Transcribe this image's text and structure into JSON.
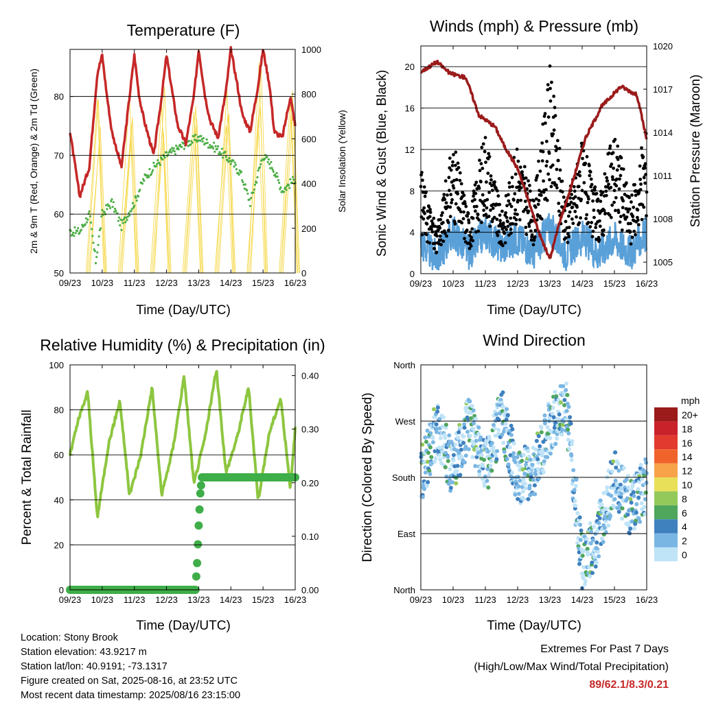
{
  "x_ticks": [
    "09/23",
    "10/23",
    "11/23",
    "12/23",
    "13/23",
    "14/23",
    "15/23",
    "16/23"
  ],
  "panels": {
    "temperature": {
      "title": "Temperature (F)",
      "xlabel": "Time (Day/UTC)",
      "ylabel_left": "2m & 9m T (Red, Orange) & 2m Td (Green)",
      "ylabel_right": "Solar Insolation (Yellow)"
    },
    "winds": {
      "title": "Winds (mph) & Pressure (mb)",
      "xlabel": "Time (Day/UTC)",
      "ylabel_left": "Sonic Wind & Gust (Blue, Black)",
      "ylabel_right": "Station Pressure (Maroon)"
    },
    "humidity": {
      "title": "Relative Humidity (%) & Precipitation (in)",
      "xlabel": "Time (Day/UTC)",
      "ylabel_left": "Percent & Total Rainfall"
    },
    "direction": {
      "title": "Wind Direction",
      "xlabel": "Time (Day/UTC)",
      "ylabel_left": "Direction (Colored By Speed)",
      "legend_title": "mph",
      "legend_labels": [
        "20+",
        "18",
        "16",
        "14",
        "12",
        "10",
        "8",
        "6",
        "4",
        "2",
        "0"
      ],
      "legend_colors": [
        "#9b1b1b",
        "#c9222a",
        "#e23a2e",
        "#f0642c",
        "#f8a24a",
        "#e9e05a",
        "#92c95a",
        "#4fa65d",
        "#3f80bf",
        "#7ab6e3",
        "#bfe3f7"
      ]
    }
  },
  "info": {
    "location": "Location: Stony Brook",
    "elevation": "Station elevation: 43.9217 m",
    "latlon": "Station lat/lon: 40.9191; -73.1317",
    "created": "Figure created on Sat, 2025-08-16, at 23:52 UTC",
    "recent": "Most recent data timestamp: 2025/08/16 23:15:00"
  },
  "extremes": {
    "line1": "Extremes For Past 7 Days",
    "line2": "(High/Low/Max Wind/Total Precipitation)",
    "values": "89/62.1/8.3/0.21"
  },
  "chart_data": [
    {
      "type": "line",
      "title": "Temperature (F)",
      "xlabel": "Time (Day/UTC)",
      "ylabel": "2m & 9m T (Red, Orange) & 2m Td (Green)",
      "ylabel_right": "Solar Insolation (Yellow)",
      "ylim": [
        50,
        88
      ],
      "ylim_right": [
        0,
        1000
      ],
      "y_ticks": [
        50,
        60,
        70,
        80
      ],
      "y_ticks_right": [
        0,
        200,
        400,
        600,
        800,
        1000
      ],
      "grid": true,
      "series": [
        {
          "color": "#c62828",
          "x": [
            0,
            0.3,
            0.6,
            0.85,
            1.0,
            1.15,
            1.3,
            1.6,
            1.85,
            2.0,
            2.15,
            2.3,
            2.6,
            2.85,
            3.0,
            3.2,
            3.35,
            3.6,
            3.85,
            4.0,
            4.2,
            4.35,
            4.6,
            4.85,
            5.0,
            5.2,
            5.35,
            5.6,
            5.85,
            6.0,
            6.2,
            6.35,
            6.6,
            6.85,
            7.0
          ],
          "values": [
            74,
            63,
            68,
            84,
            87,
            80,
            74,
            68,
            80,
            87,
            80,
            76,
            70,
            80,
            87,
            80,
            75,
            72,
            80,
            88,
            80,
            76,
            73,
            81,
            88,
            82,
            77,
            74,
            82,
            88,
            82,
            74,
            73,
            80,
            75
          ]
        },
        {
          "color": "#4cae46",
          "x": [
            0,
            0.3,
            0.6,
            0.8,
            1.0,
            1.3,
            1.6,
            2.0,
            2.3,
            2.6,
            3.0,
            3.3,
            3.6,
            4.0,
            4.3,
            4.6,
            5.0,
            5.3,
            5.6,
            6.0,
            6.3,
            6.6,
            7.0
          ],
          "values": [
            57,
            57,
            60,
            52,
            60,
            62,
            58,
            62,
            66,
            68,
            70,
            71,
            72,
            73,
            72,
            71,
            69,
            67,
            62,
            70,
            68,
            64,
            66
          ]
        },
        {
          "color": "#f5d84b",
          "x": [
            0.5,
            0.85,
            1.5,
            1.85,
            2.5,
            2.85,
            3.5,
            3.85,
            4.5,
            4.85,
            5.5,
            5.85,
            6.5,
            6.85
          ],
          "values": [
            0,
            800,
            0,
            820,
            0,
            850,
            0,
            880,
            0,
            900,
            0,
            980,
            0,
            940
          ]
        }
      ]
    },
    {
      "type": "scatter",
      "title": "Winds (mph) & Pressure (mb)",
      "xlabel": "Time (Day/UTC)",
      "ylabel": "Sonic Wind & Gust (Blue, Black)",
      "ylabel_right": "Station Pressure (Maroon)",
      "ylim": [
        0,
        22
      ],
      "ylim_right": [
        1004.2,
        1020
      ],
      "y_ticks": [
        0,
        4,
        8,
        12,
        16,
        20
      ],
      "y_ticks_right": [
        1005,
        1008,
        1011,
        1014,
        1017,
        1020
      ],
      "grid": true,
      "series": [
        {
          "color": "#5aa0d8",
          "x": [
            0,
            0.5,
            1.0,
            1.5,
            2.0,
            2.5,
            3.0,
            3.5,
            4.0,
            4.5,
            5.0,
            5.5,
            6.0,
            6.5,
            7.0
          ],
          "values": [
            3,
            1.5,
            4,
            2,
            4,
            2.5,
            3.5,
            2,
            4.5,
            2,
            3.5,
            2,
            3.5,
            2,
            4
          ]
        },
        {
          "color": "#000000",
          "x": [
            0,
            0.5,
            1.0,
            1.5,
            2.0,
            2.5,
            3.0,
            3.5,
            4.0,
            4.5,
            5.0,
            5.5,
            6.0,
            6.5,
            7.0
          ],
          "values": [
            7,
            3,
            9,
            4,
            10,
            4,
            9,
            5,
            14,
            5,
            9,
            5,
            10,
            5,
            10
          ]
        },
        {
          "color": "#9b1b1b",
          "x": [
            0,
            0.5,
            0.9,
            1.4,
            1.8,
            2.3,
            2.6,
            3.0,
            3.3,
            3.7,
            4.0,
            4.3,
            4.6,
            5.1,
            5.6,
            6.2,
            6.7,
            7.0
          ],
          "values": [
            1018.2,
            1018.9,
            1018.1,
            1017.8,
            1015.2,
            1014.4,
            1013.0,
            1011.5,
            1009.5,
            1006.8,
            1005.2,
            1007.8,
            1009.8,
            1013.6,
            1015.8,
            1017.2,
            1016.6,
            1013.5
          ]
        }
      ]
    },
    {
      "type": "line",
      "title": "Relative Humidity (%) & Precipitation (in)",
      "xlabel": "Time (Day/UTC)",
      "ylabel": "Percent & Total Rainfall",
      "ylim": [
        0,
        100
      ],
      "ylim_right": [
        0,
        0.42
      ],
      "y_ticks": [
        0,
        20,
        40,
        60,
        80,
        100
      ],
      "y_ticks_right": [
        0.0,
        0.1,
        0.2,
        0.3,
        0.4
      ],
      "grid": true,
      "series": [
        {
          "color": "#8dc63f",
          "x": [
            0,
            0.25,
            0.55,
            0.85,
            1.2,
            1.55,
            1.85,
            2.2,
            2.55,
            2.85,
            3.2,
            3.55,
            3.85,
            4.2,
            4.55,
            4.85,
            5.2,
            5.55,
            5.85,
            6.2,
            6.55,
            6.85,
            7.0
          ],
          "values": [
            60,
            75,
            88,
            32,
            65,
            84,
            42,
            60,
            90,
            42,
            63,
            95,
            47,
            68,
            98,
            52,
            68,
            90,
            40,
            70,
            85,
            45,
            72
          ]
        },
        {
          "color": "#3fae49",
          "x": [
            0,
            1,
            2,
            3,
            3.9,
            3.95,
            4.0,
            4.05,
            4.1,
            5,
            6,
            7
          ],
          "values": [
            0,
            0,
            0,
            0,
            0,
            0.05,
            0.12,
            0.18,
            0.21,
            0.21,
            0.21,
            0.21
          ]
        }
      ]
    },
    {
      "type": "scatter",
      "title": "Wind Direction",
      "xlabel": "Time (Day/UTC)",
      "ylabel": "Direction (Colored By Speed)",
      "y_categories": [
        "North",
        "East",
        "South",
        "West",
        "North"
      ],
      "ylim": [
        0,
        360
      ],
      "grid": true,
      "legend_title": "mph",
      "series": [
        {
          "x": [
            0,
            0.5,
            1.0,
            1.5,
            2.0,
            2.5,
            3.0,
            3.5,
            4.0,
            4.5,
            5.0,
            5.5,
            6.0,
            6.5,
            7.0
          ],
          "values": [
            180,
            260,
            190,
            270,
            190,
            280,
            180,
            190,
            260,
            300,
            40,
            90,
            180,
            130,
            170
          ]
        }
      ]
    }
  ]
}
